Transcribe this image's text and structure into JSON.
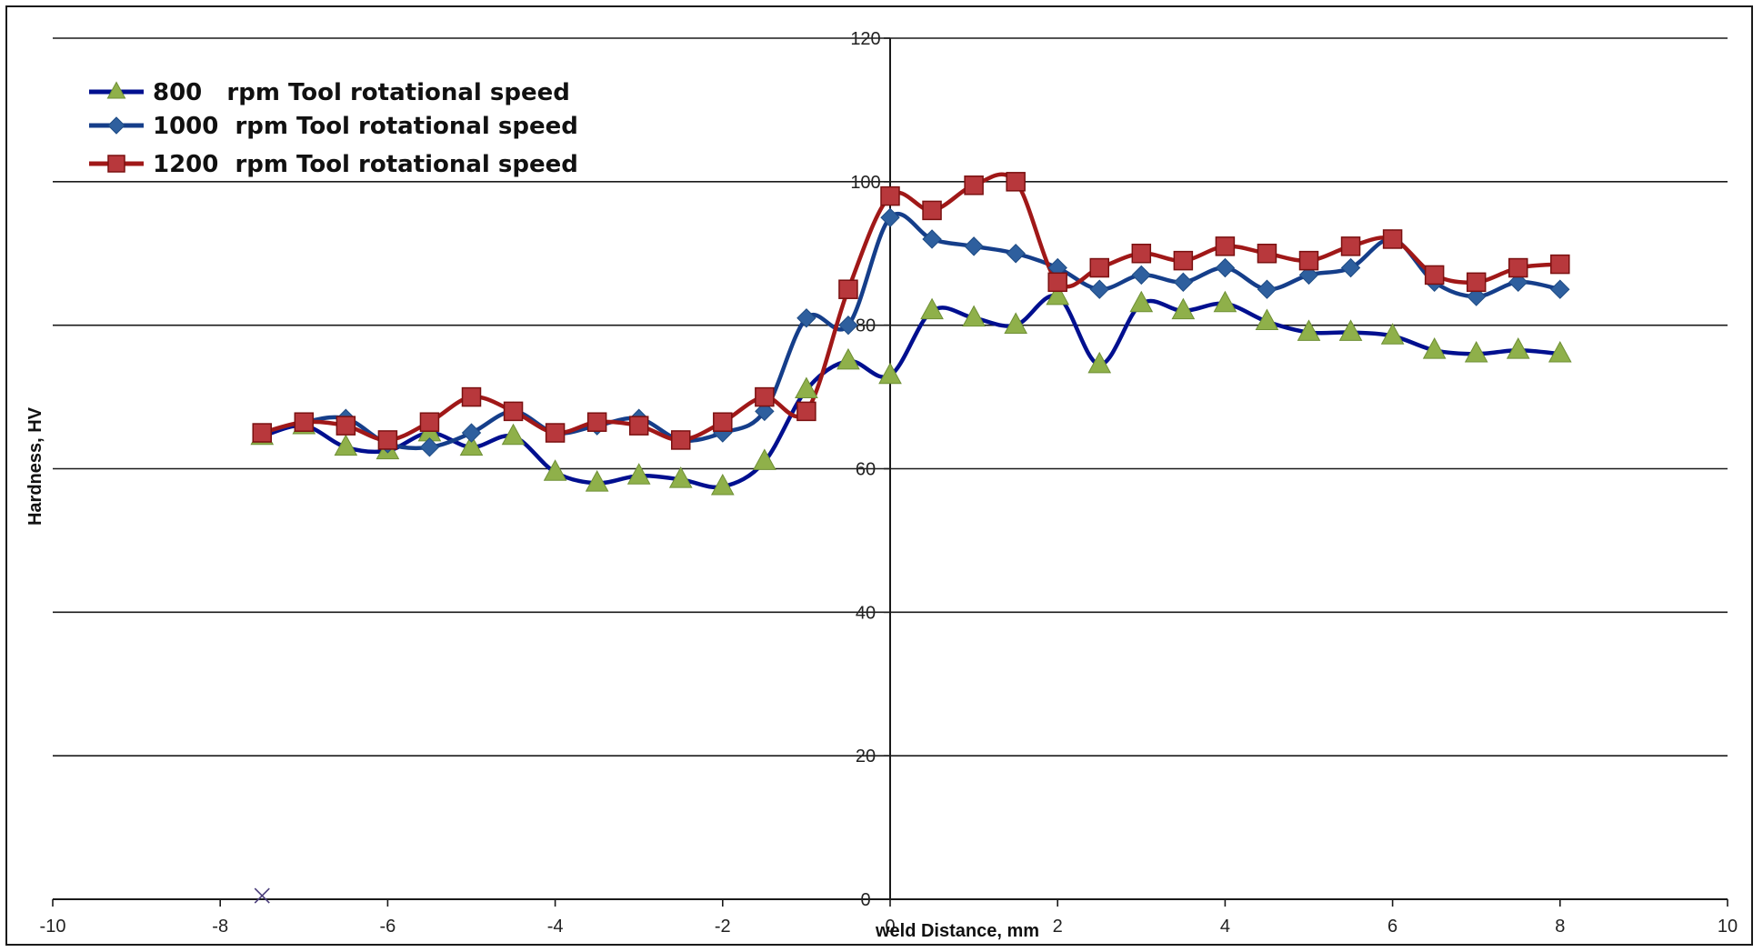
{
  "chart_data": {
    "type": "line",
    "xlabel": "weld Distance, mm",
    "ylabel": "Hardness, HV",
    "xlim": [
      -10,
      10
    ],
    "ylim": [
      0,
      120
    ],
    "x_ticks": [
      "-10",
      "-8",
      "-6",
      "-4",
      "-2",
      "0",
      "2",
      "4",
      "6",
      "8",
      "10"
    ],
    "y_ticks": [
      "0",
      "20",
      "40",
      "60",
      "80",
      "100",
      "120"
    ],
    "grid": "horizontal",
    "legend_position": "top-left",
    "x": [
      -7.5,
      -7,
      -6.5,
      -6,
      -5.5,
      -5,
      -4.5,
      -4,
      -3.5,
      -3,
      -2.5,
      -2,
      -1.5,
      -1,
      -0.5,
      0,
      0.5,
      1,
      1.5,
      2,
      2.5,
      3,
      3.5,
      4,
      4.5,
      5,
      5.5,
      6,
      6.5,
      7,
      7.5,
      8
    ],
    "series": [
      {
        "name": "800   rpm Tool rotational speed",
        "marker": "triangle",
        "color": "#000f8f",
        "marker_color": "#8fb04a",
        "values": [
          64.5,
          66,
          63,
          62.5,
          65,
          63,
          64.5,
          59.5,
          58,
          59,
          58.5,
          57.5,
          61,
          71,
          75,
          73,
          82,
          81,
          80,
          84,
          74.5,
          83,
          82,
          83,
          80.5,
          79,
          79,
          78.5,
          76.5,
          76,
          76.5,
          76
        ]
      },
      {
        "name": "1000  rpm Tool rotational speed",
        "marker": "diamond",
        "color": "#153e8a",
        "marker_color": "#2e5f9e",
        "values": [
          65,
          66.5,
          67,
          63.5,
          63,
          65,
          68,
          65,
          66,
          67,
          64,
          65,
          68,
          81,
          80,
          95,
          92,
          91,
          90,
          88,
          85,
          87,
          86,
          88,
          85,
          87,
          88,
          92,
          86,
          84,
          86,
          85
        ]
      },
      {
        "name": "1200  rpm Tool rotational speed",
        "marker": "square",
        "color": "#a01818",
        "marker_color": "#b8383c",
        "values": [
          65,
          66.5,
          66,
          64,
          66.5,
          70,
          68,
          65,
          66.5,
          66,
          64,
          66.5,
          70,
          68,
          85,
          98,
          96,
          99.5,
          100,
          86,
          88,
          90,
          89,
          91,
          90,
          89,
          91,
          92,
          87,
          86,
          88,
          88.5
        ]
      }
    ],
    "stray_marker": {
      "symbol": "x",
      "x": -7.5,
      "y": 0.5,
      "color": "#4a3d7a"
    }
  }
}
